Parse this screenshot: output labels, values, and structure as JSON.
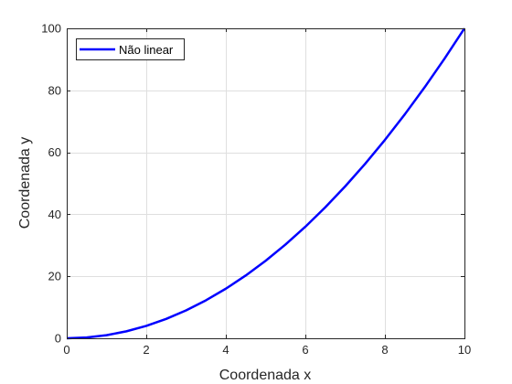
{
  "chart_data": {
    "type": "line",
    "title": "",
    "xlabel": "Coordenada x",
    "ylabel": "Coordenada y",
    "xlim": [
      0,
      10
    ],
    "ylim": [
      0,
      100
    ],
    "xticks": [
      0,
      2,
      4,
      6,
      8,
      10
    ],
    "yticks": [
      0,
      20,
      40,
      60,
      80,
      100
    ],
    "xtick_labels": [
      "0",
      "2",
      "4",
      "6",
      "8",
      "10"
    ],
    "ytick_labels": [
      "0",
      "20",
      "40",
      "60",
      "80",
      "100"
    ],
    "grid": true,
    "legend_position": "top-left",
    "series": [
      {
        "name": "Não linear",
        "color": "#0000ff",
        "x": [
          0,
          0.5,
          1,
          1.5,
          2,
          2.5,
          3,
          3.5,
          4,
          4.5,
          5,
          5.5,
          6,
          6.5,
          7,
          7.5,
          8,
          8.5,
          9,
          9.5,
          10
        ],
        "y": [
          0,
          0.25,
          1,
          2.25,
          4,
          6.25,
          9,
          12.25,
          16,
          20.25,
          25,
          30.25,
          36,
          42.25,
          49,
          56.25,
          64,
          72.25,
          81,
          90.25,
          100
        ]
      }
    ]
  }
}
